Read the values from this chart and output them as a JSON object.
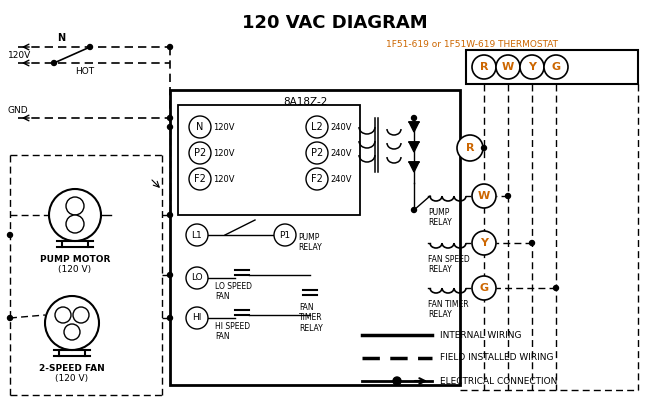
{
  "title": "120 VAC DIAGRAM",
  "title_color": "#000000",
  "title_fontsize": 13,
  "background_color": "#ffffff",
  "thermostat_label": "1F51-619 or 1F51W-619 THERMOSTAT",
  "thermostat_color": "#cc6600",
  "control_box_label": "8A18Z-2",
  "terminal_letters_thermostat": [
    "R",
    "W",
    "Y",
    "G"
  ],
  "terminal_color": "#cc6600",
  "legend_items": [
    {
      "label": "INTERNAL WIRING",
      "style": "solid"
    },
    {
      "label": "FIELD INSTALLED WIRING",
      "style": "dashed"
    },
    {
      "label": "ELECTRICAL CONNECTION",
      "style": "connection"
    }
  ],
  "input_labels_left": [
    "N",
    "P2",
    "F2"
  ],
  "input_labels_right": [
    "L2",
    "P2",
    "F2"
  ],
  "voltage_left": [
    "120V",
    "120V",
    "120V"
  ],
  "voltage_right": [
    "240V",
    "240V",
    "240V"
  ]
}
